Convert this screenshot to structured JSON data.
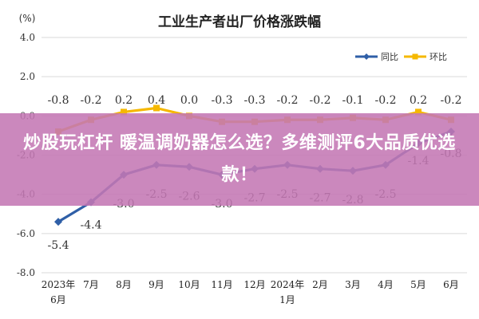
{
  "chart_data": {
    "type": "line",
    "title": "工业生产者出厂价格涨跌幅",
    "unit": "(%)",
    "ylim": [
      -8.0,
      4.0
    ],
    "yticks": [
      "4.0",
      "2.0",
      "0.0",
      "-2.0",
      "-4.0",
      "-6.0",
      "-8.0"
    ],
    "ytick_values": [
      4,
      2,
      0,
      -2,
      -4,
      -6,
      -8
    ],
    "categories": [
      "2023年6月",
      "7月",
      "8月",
      "9月",
      "10月",
      "11月",
      "12月",
      "2024年1月",
      "2月",
      "3月",
      "4月",
      "5月",
      "6月"
    ],
    "category_lines": [
      [
        "2023年",
        "6月"
      ],
      [
        "7月"
      ],
      [
        "8月"
      ],
      [
        "9月"
      ],
      [
        "10月"
      ],
      [
        "11月"
      ],
      [
        "12月"
      ],
      [
        "2024年",
        "1月"
      ],
      [
        "2月"
      ],
      [
        "3月"
      ],
      [
        "4月"
      ],
      [
        "5月"
      ],
      [
        "6月"
      ]
    ],
    "grid": true,
    "legend_position": "top-right",
    "series": [
      {
        "name": "同比",
        "color": "#2f5fa7",
        "values": [
          -5.4,
          -4.4,
          -3.0,
          -2.5,
          -2.6,
          -3.0,
          -2.7,
          -2.5,
          -2.7,
          -2.8,
          -2.5,
          -1.4,
          -0.8
        ],
        "labels": [
          "-5.4",
          "-4.4",
          "-3.0",
          "-2.5",
          "-2.6",
          "-3.0",
          "-2.7",
          "-2.5",
          "-2.7",
          "-2.8",
          "-2.5",
          "-1.4",
          "-0.8"
        ]
      },
      {
        "name": "环比",
        "color": "#f5b800",
        "values": [
          -0.8,
          -0.2,
          0.2,
          0.4,
          0.0,
          -0.3,
          -0.3,
          -0.2,
          -0.2,
          -0.1,
          -0.2,
          0.2,
          -0.2
        ],
        "labels": [
          "-0.8",
          "-0.2",
          "0.2",
          "0.4",
          "0.0",
          "-0.3",
          "-0.3",
          "-0.2",
          "-0.2",
          "-0.1",
          "-0.2",
          "0.2",
          "-0.2"
        ]
      }
    ]
  },
  "banner": {
    "text": "炒股玩杠杆 暖温调奶器怎么选？多维测评6大品质优选款！"
  }
}
